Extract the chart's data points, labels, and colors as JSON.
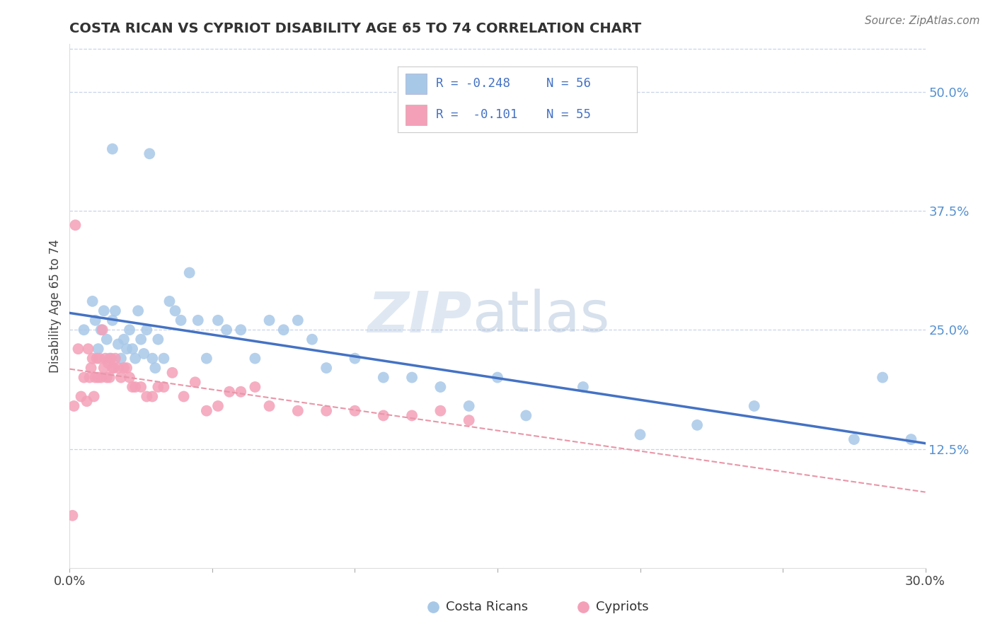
{
  "title": "COSTA RICAN VS CYPRIOT DISABILITY AGE 65 TO 74 CORRELATION CHART",
  "source": "Source: ZipAtlas.com",
  "ylabel": "Disability Age 65 to 74",
  "xlim": [
    0.0,
    30.0
  ],
  "ylim": [
    0.0,
    55.0
  ],
  "x_ticks": [
    0.0,
    5.0,
    10.0,
    15.0,
    20.0,
    25.0,
    30.0
  ],
  "x_tick_labels": [
    "0.0%",
    "",
    "",
    "",
    "",
    "",
    "30.0%"
  ],
  "y_tick_labels_right": [
    "12.5%",
    "25.0%",
    "37.5%",
    "50.0%"
  ],
  "y_ticks_right": [
    12.5,
    25.0,
    37.5,
    50.0
  ],
  "color_blue": "#a8c8e8",
  "color_pink": "#f4a0b8",
  "color_line_blue": "#4472c4",
  "color_line_pink": "#e896a8",
  "watermark": "ZIPatlas",
  "background_color": "#ffffff",
  "grid_color": "#c8d4e8",
  "blue_scatter_x": [
    1.5,
    2.8,
    0.5,
    0.8,
    0.9,
    1.0,
    1.1,
    1.2,
    1.3,
    1.4,
    1.5,
    1.6,
    1.7,
    1.8,
    1.9,
    2.0,
    2.1,
    2.2,
    2.3,
    2.4,
    2.5,
    2.6,
    2.7,
    2.9,
    3.0,
    3.1,
    3.3,
    3.5,
    3.7,
    3.9,
    4.2,
    4.5,
    4.8,
    5.2,
    5.5,
    6.0,
    6.5,
    7.0,
    7.5,
    8.0,
    8.5,
    9.0,
    10.0,
    11.0,
    12.0,
    13.0,
    14.0,
    15.0,
    16.0,
    18.0,
    20.0,
    22.0,
    24.0,
    27.5,
    28.5,
    29.5
  ],
  "blue_scatter_y": [
    44.0,
    43.5,
    25.0,
    28.0,
    26.0,
    23.0,
    25.0,
    27.0,
    24.0,
    22.0,
    26.0,
    27.0,
    23.5,
    22.0,
    24.0,
    23.0,
    25.0,
    23.0,
    22.0,
    27.0,
    24.0,
    22.5,
    25.0,
    22.0,
    21.0,
    24.0,
    22.0,
    28.0,
    27.0,
    26.0,
    31.0,
    26.0,
    22.0,
    26.0,
    25.0,
    25.0,
    22.0,
    26.0,
    25.0,
    26.0,
    24.0,
    21.0,
    22.0,
    20.0,
    20.0,
    19.0,
    17.0,
    20.0,
    16.0,
    19.0,
    14.0,
    15.0,
    17.0,
    13.5,
    20.0,
    13.5
  ],
  "pink_scatter_x": [
    0.1,
    0.2,
    0.3,
    0.4,
    0.5,
    0.6,
    0.65,
    0.7,
    0.75,
    0.8,
    0.85,
    0.9,
    0.95,
    1.0,
    1.05,
    1.1,
    1.15,
    1.2,
    1.25,
    1.3,
    1.35,
    1.4,
    1.45,
    1.5,
    1.55,
    1.6,
    1.7,
    1.8,
    1.9,
    2.0,
    2.1,
    2.2,
    2.3,
    2.5,
    2.7,
    2.9,
    3.1,
    3.3,
    3.6,
    4.0,
    4.4,
    4.8,
    5.2,
    5.6,
    6.0,
    6.5,
    7.0,
    8.0,
    9.0,
    10.0,
    11.0,
    12.0,
    13.0,
    14.0,
    0.15
  ],
  "pink_scatter_y": [
    5.5,
    36.0,
    23.0,
    18.0,
    20.0,
    17.5,
    23.0,
    20.0,
    21.0,
    22.0,
    18.0,
    20.0,
    22.0,
    20.0,
    22.0,
    20.0,
    25.0,
    21.0,
    22.0,
    20.0,
    21.5,
    20.0,
    22.0,
    21.0,
    21.0,
    22.0,
    21.0,
    20.0,
    21.0,
    21.0,
    20.0,
    19.0,
    19.0,
    19.0,
    18.0,
    18.0,
    19.0,
    19.0,
    20.5,
    18.0,
    19.5,
    16.5,
    17.0,
    18.5,
    18.5,
    19.0,
    17.0,
    16.5,
    16.5,
    16.5,
    16.0,
    16.0,
    16.5,
    15.5,
    17.0
  ]
}
